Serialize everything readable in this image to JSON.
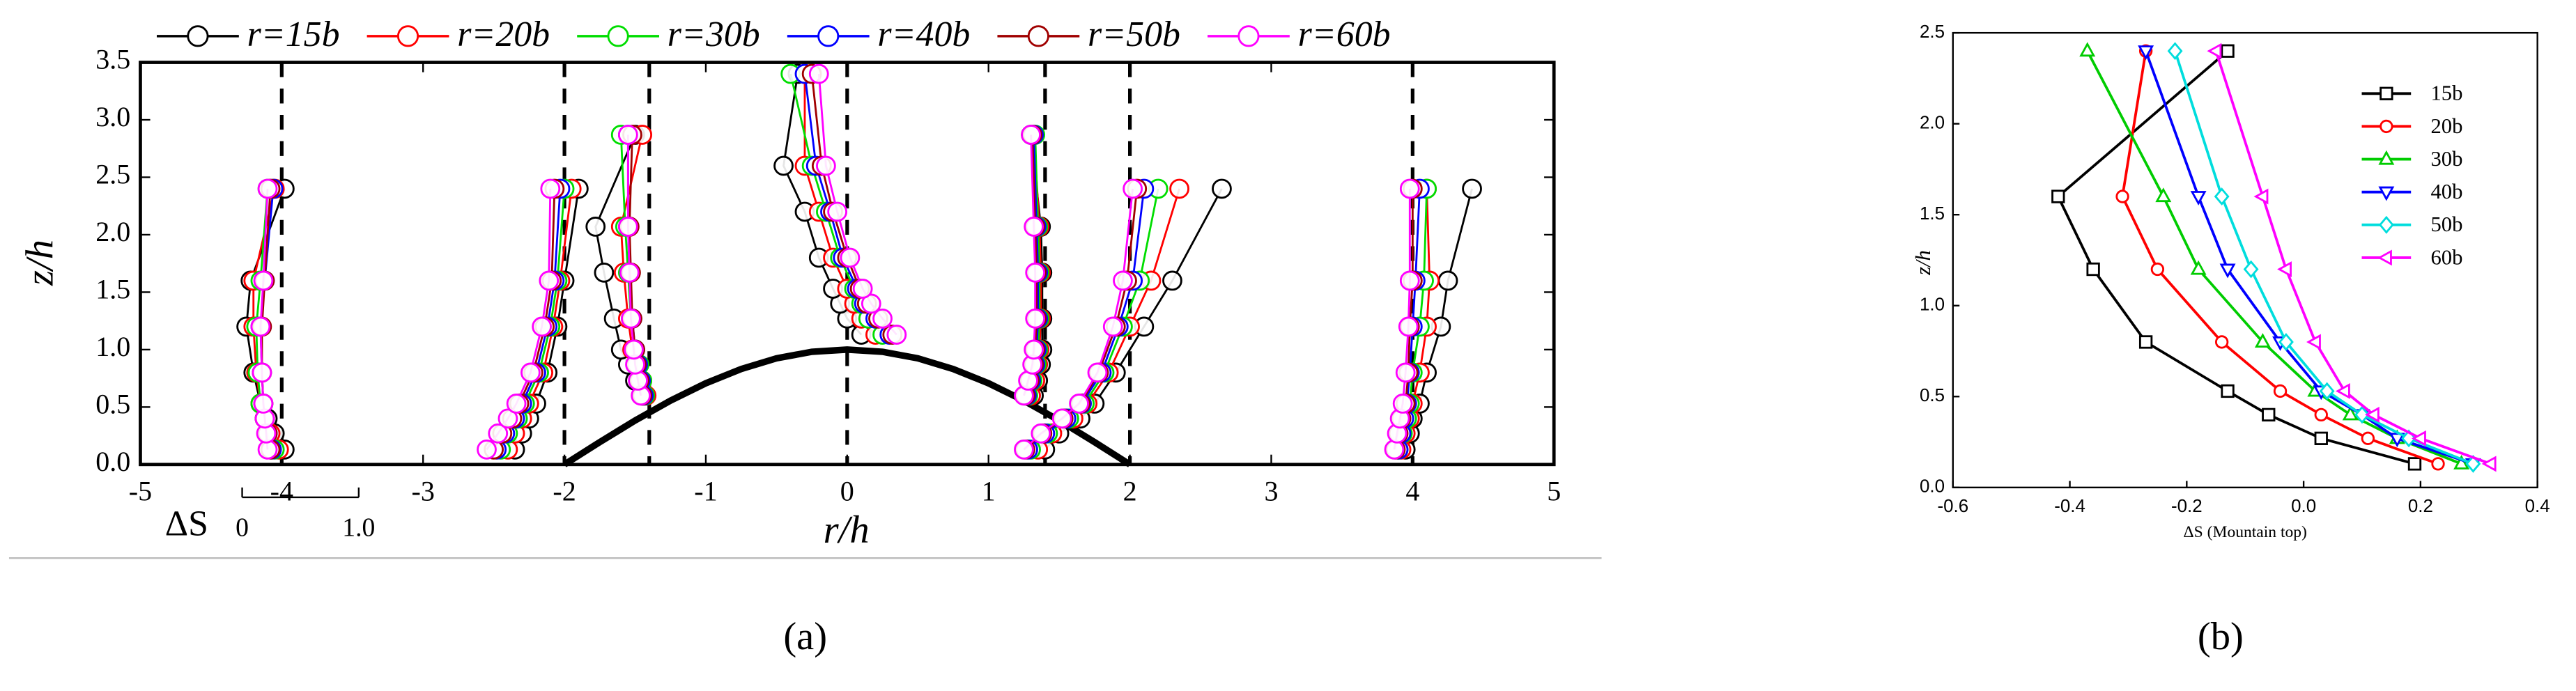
{
  "chart_data": [
    {
      "type": "profile",
      "xlabel": "r/h",
      "ylabel": "z/h",
      "xlim": [
        -5,
        5
      ],
      "xticks": [
        -5,
        -4,
        -3,
        -2,
        -1,
        0,
        1,
        2,
        3,
        4,
        5
      ],
      "ylim": [
        0,
        3.5
      ],
      "yticks": [
        {
          "value": 0,
          "label": "0.0"
        },
        0.5,
        {
          "value": 1,
          "label": "1.0"
        },
        1.5,
        {
          "value": 2,
          "label": "2.0"
        },
        2.5,
        {
          "value": 3,
          "label": "3.0"
        },
        3.5
      ],
      "caption": "(a)",
      "stations": [
        -4,
        -2,
        -1.4,
        0,
        1.4,
        2,
        4
      ],
      "heights": [
        [
          0.13,
          0.27,
          0.4,
          0.53,
          0.8,
          1.2,
          1.6,
          2.4
        ],
        [
          0.13,
          0.27,
          0.4,
          0.53,
          0.8,
          1.2,
          1.6,
          2.4
        ],
        [
          0.6,
          0.73,
          0.87,
          1.0,
          1.27,
          1.67,
          2.07,
          2.87
        ],
        [
          1.13,
          1.27,
          1.4,
          1.53,
          1.8,
          2.2,
          2.6,
          3.4
        ],
        [
          0.6,
          0.73,
          0.87,
          1.0,
          1.27,
          1.67,
          2.07,
          2.87
        ],
        [
          0.13,
          0.27,
          0.4,
          0.53,
          0.8,
          1.2,
          1.6,
          2.4
        ],
        [
          0.13,
          0.27,
          0.4,
          0.53,
          0.8,
          1.2,
          1.6,
          2.4
        ]
      ],
      "terrain": {
        "x": [
          -2,
          -1.75,
          -1.5,
          -1.25,
          -1,
          -0.75,
          -0.5,
          -0.25,
          0,
          0.25,
          0.5,
          0.75,
          1,
          1.25,
          1.5,
          1.75,
          2
        ],
        "y": [
          0,
          0.195,
          0.383,
          0.556,
          0.707,
          0.831,
          0.924,
          0.981,
          1,
          0.981,
          0.924,
          0.831,
          0.707,
          0.556,
          0.383,
          0.195,
          0
        ]
      },
      "scalebar": {
        "label": "ΔS",
        "ticks": [
          {
            "value": 0,
            "label": "0"
          },
          {
            "value": 1,
            "label": "1.0"
          }
        ]
      },
      "series": [
        {
          "name": "r=15b",
          "color": "#000000",
          "profiles": [
            [
              -3.98,
              -4.05,
              -4.1,
              -4.15,
              -4.2,
              -4.25,
              -4.22,
              -3.98
            ],
            [
              -2.35,
              -2.3,
              -2.25,
              -2.2,
              -2.12,
              -2.05,
              -2.0,
              -1.9
            ],
            [
              -1.45,
              -1.5,
              -1.55,
              -1.6,
              -1.65,
              -1.72,
              -1.78,
              -1.5
            ],
            [
              0.1,
              0.0,
              -0.05,
              -0.1,
              -0.2,
              -0.3,
              -0.45,
              -0.35
            ],
            [
              1.32,
              1.35,
              1.37,
              1.38,
              1.38,
              1.38,
              1.37,
              1.3
            ],
            [
              1.4,
              1.5,
              1.65,
              1.75,
              1.9,
              2.1,
              2.3,
              2.65
            ],
            [
              3.95,
              3.98,
              4.0,
              4.05,
              4.1,
              4.2,
              4.25,
              4.42
            ]
          ]
        },
        {
          "name": "r=20b",
          "color": "#ff0000",
          "profiles": [
            [
              -4.02,
              -4.08,
              -4.12,
              -4.15,
              -4.18,
              -4.2,
              -4.2,
              -4.05
            ],
            [
              -2.4,
              -2.35,
              -2.3,
              -2.25,
              -2.15,
              -2.08,
              -2.03,
              -1.95
            ],
            [
              -1.42,
              -1.45,
              -1.48,
              -1.52,
              -1.55,
              -1.58,
              -1.6,
              -1.45
            ],
            [
              0.2,
              0.1,
              0.05,
              0.0,
              -0.1,
              -0.2,
              -0.3,
              -0.3
            ],
            [
              1.3,
              1.33,
              1.35,
              1.36,
              1.37,
              1.37,
              1.36,
              1.32
            ],
            [
              1.35,
              1.45,
              1.6,
              1.7,
              1.85,
              2.0,
              2.15,
              2.35
            ],
            [
              3.92,
              3.95,
              3.98,
              4.0,
              4.05,
              4.1,
              4.12,
              4.1
            ]
          ]
        },
        {
          "name": "r=30b",
          "color": "#00dd00",
          "profiles": [
            [
              -4.05,
              -4.1,
              -4.12,
              -4.15,
              -4.17,
              -4.18,
              -4.15,
              -4.1
            ],
            [
              -2.45,
              -2.4,
              -2.33,
              -2.28,
              -2.18,
              -2.1,
              -2.05,
              -2.0
            ],
            [
              -1.43,
              -1.45,
              -1.47,
              -1.5,
              -1.53,
              -1.55,
              -1.57,
              -1.6
            ],
            [
              0.25,
              0.15,
              0.1,
              0.05,
              -0.05,
              -0.15,
              -0.25,
              -0.4
            ],
            [
              1.28,
              1.31,
              1.34,
              1.35,
              1.36,
              1.36,
              1.35,
              1.33
            ],
            [
              1.3,
              1.42,
              1.57,
              1.68,
              1.82,
              1.95,
              2.07,
              2.2
            ],
            [
              3.9,
              3.93,
              3.96,
              3.98,
              4.0,
              4.05,
              4.08,
              4.1
            ]
          ]
        },
        {
          "name": "r=40b",
          "color": "#0000ff",
          "profiles": [
            [
              -4.07,
              -4.1,
              -4.12,
              -4.13,
              -4.14,
              -4.15,
              -4.12,
              -4.06
            ],
            [
              -2.48,
              -2.42,
              -2.35,
              -2.3,
              -2.2,
              -2.12,
              -2.07,
              -2.03
            ],
            [
              -1.44,
              -1.46,
              -1.48,
              -1.5,
              -1.52,
              -1.54,
              -1.55,
              -1.55
            ],
            [
              0.3,
              0.2,
              0.12,
              0.07,
              -0.03,
              -0.12,
              -0.22,
              -0.3
            ],
            [
              1.27,
              1.3,
              1.33,
              1.34,
              1.35,
              1.35,
              1.34,
              1.32
            ],
            [
              1.28,
              1.4,
              1.55,
              1.66,
              1.8,
              1.92,
              2.02,
              2.1
            ],
            [
              3.9,
              3.92,
              3.94,
              3.96,
              3.98,
              4.0,
              4.02,
              4.05
            ]
          ]
        },
        {
          "name": "r=50b",
          "color": "#a00000",
          "profiles": [
            [
              -4.08,
              -4.1,
              -4.12,
              -4.13,
              -4.14,
              -4.14,
              -4.12,
              -4.08
            ],
            [
              -2.5,
              -2.44,
              -2.37,
              -2.32,
              -2.22,
              -2.14,
              -2.09,
              -2.07
            ],
            [
              -1.45,
              -1.47,
              -1.49,
              -1.5,
              -1.52,
              -1.53,
              -1.54,
              -1.52
            ],
            [
              0.32,
              0.22,
              0.14,
              0.09,
              0.0,
              -0.1,
              -0.18,
              -0.25
            ],
            [
              1.26,
              1.29,
              1.32,
              1.33,
              1.34,
              1.34,
              1.33,
              1.31
            ],
            [
              1.26,
              1.38,
              1.53,
              1.65,
              1.78,
              1.9,
              1.98,
              2.05
            ],
            [
              3.88,
              3.9,
              3.92,
              3.95,
              3.97,
              3.98,
              4.0,
              4.0
            ]
          ]
        },
        {
          "name": "r=60b",
          "color": "#ff00ff",
          "profiles": [
            [
              -4.1,
              -4.11,
              -4.12,
              -4.13,
              -4.14,
              -4.15,
              -4.13,
              -4.1
            ],
            [
              -2.55,
              -2.47,
              -2.4,
              -2.34,
              -2.24,
              -2.16,
              -2.11,
              -2.1
            ],
            [
              -1.46,
              -1.48,
              -1.5,
              -1.51,
              -1.53,
              -1.54,
              -1.55,
              -1.55
            ],
            [
              0.35,
              0.25,
              0.17,
              0.11,
              0.02,
              -0.07,
              -0.15,
              -0.2
            ],
            [
              1.25,
              1.28,
              1.31,
              1.32,
              1.33,
              1.33,
              1.32,
              1.3
            ],
            [
              1.25,
              1.37,
              1.52,
              1.64,
              1.77,
              1.88,
              1.95,
              2.02
            ],
            [
              3.87,
              3.89,
              3.91,
              3.93,
              3.95,
              3.97,
              3.98,
              3.98
            ]
          ]
        }
      ]
    },
    {
      "type": "line",
      "xlabel": "ΔS (Mountain top)",
      "ylabel": "z/h",
      "xlim": [
        -0.6,
        0.4
      ],
      "xticks": [
        -0.6,
        -0.4,
        -0.2,
        {
          "value": 0,
          "label": "0.0"
        },
        0.2,
        0.4
      ],
      "ylim": [
        0,
        2.5
      ],
      "yticks": [
        {
          "value": 0,
          "label": "0.0"
        },
        0.5,
        {
          "value": 1,
          "label": "1.0"
        },
        1.5,
        {
          "value": 2,
          "label": "2.0"
        },
        2.5
      ],
      "caption": "(b)",
      "y": [
        2.4,
        1.6,
        1.2,
        0.8,
        0.53,
        0.4,
        0.27,
        0.13
      ],
      "series": [
        {
          "name": "15b",
          "color": "#000000",
          "marker": "square",
          "x": [
            -0.13,
            -0.42,
            -0.36,
            -0.27,
            -0.13,
            -0.06,
            0.03,
            0.19
          ]
        },
        {
          "name": "20b",
          "color": "#ff0000",
          "marker": "circle",
          "x": [
            -0.27,
            -0.31,
            -0.25,
            -0.14,
            -0.04,
            0.03,
            0.11,
            0.23
          ]
        },
        {
          "name": "30b",
          "color": "#00cc00",
          "marker": "triangle-up",
          "x": [
            -0.37,
            -0.24,
            -0.18,
            -0.07,
            0.02,
            0.08,
            0.16,
            0.27
          ]
        },
        {
          "name": "40b",
          "color": "#0000ff",
          "marker": "triangle-down",
          "x": [
            -0.27,
            -0.18,
            -0.13,
            -0.04,
            0.03,
            0.1,
            0.16,
            0.29
          ]
        },
        {
          "name": "50b",
          "color": "#00dddd",
          "marker": "diamond",
          "x": [
            -0.22,
            -0.14,
            -0.09,
            -0.03,
            0.04,
            0.1,
            0.18,
            0.29
          ]
        },
        {
          "name": "60b",
          "color": "#ff00ff",
          "marker": "triangle-left",
          "x": [
            -0.15,
            -0.07,
            -0.03,
            0.02,
            0.07,
            0.12,
            0.2,
            0.32
          ]
        }
      ]
    }
  ]
}
